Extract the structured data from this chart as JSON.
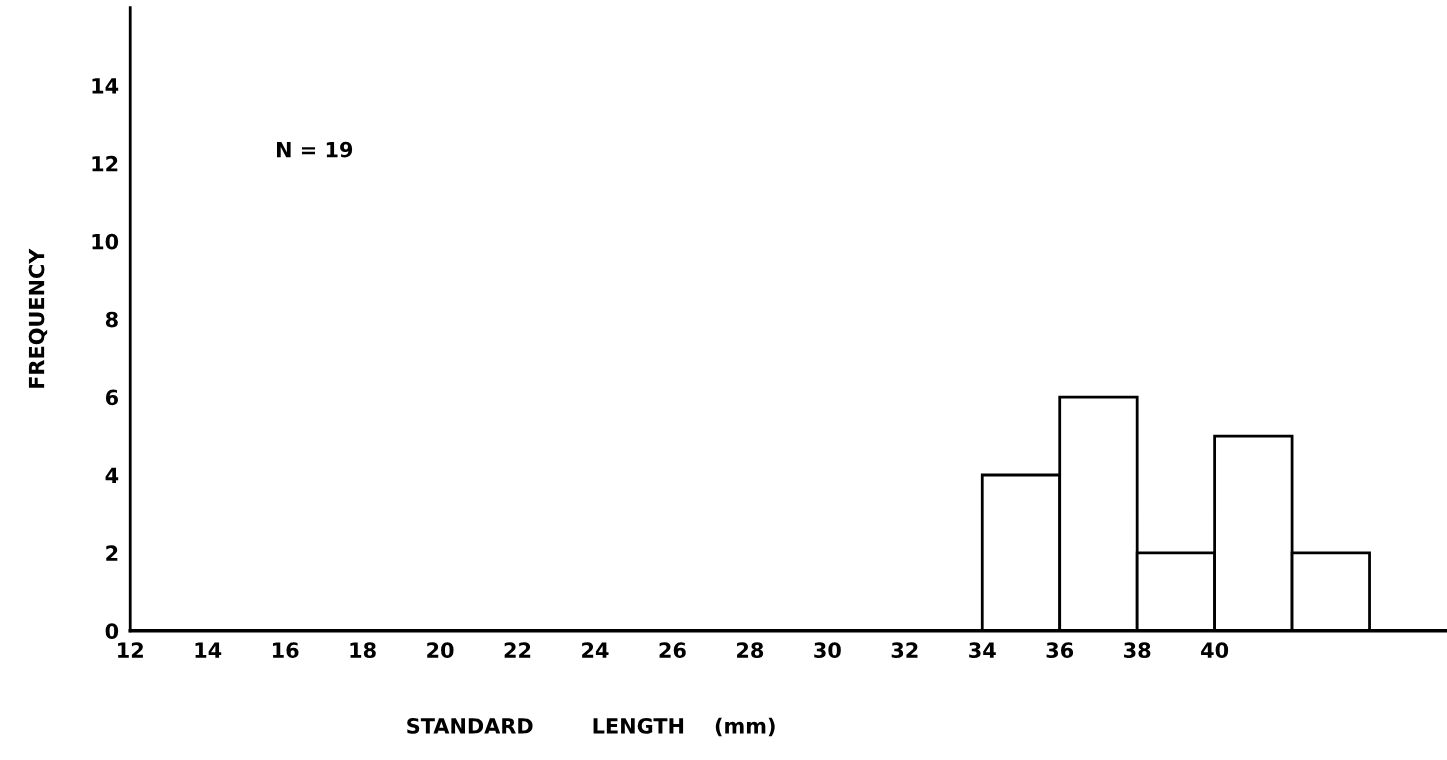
{
  "chart_data": {
    "type": "histogram",
    "xlabel": "STANDARD        LENGTH    (mm)",
    "ylabel": "FREQUENCY",
    "annotations": [
      "N = 19"
    ],
    "bins": [
      34,
      36,
      38,
      40,
      42,
      44
    ],
    "values": [
      4,
      6,
      2,
      5,
      2
    ],
    "color": "#ffffff",
    "xlim": [
      12,
      46
    ],
    "xticks": [
      12,
      14,
      16,
      18,
      20,
      22,
      24,
      26,
      28,
      30,
      32,
      34,
      36,
      38,
      40
    ],
    "ylim": [
      0,
      16
    ],
    "yticks": [
      0,
      2,
      4,
      6,
      8,
      10,
      12,
      14
    ],
    "grid": false,
    "legend": false
  }
}
